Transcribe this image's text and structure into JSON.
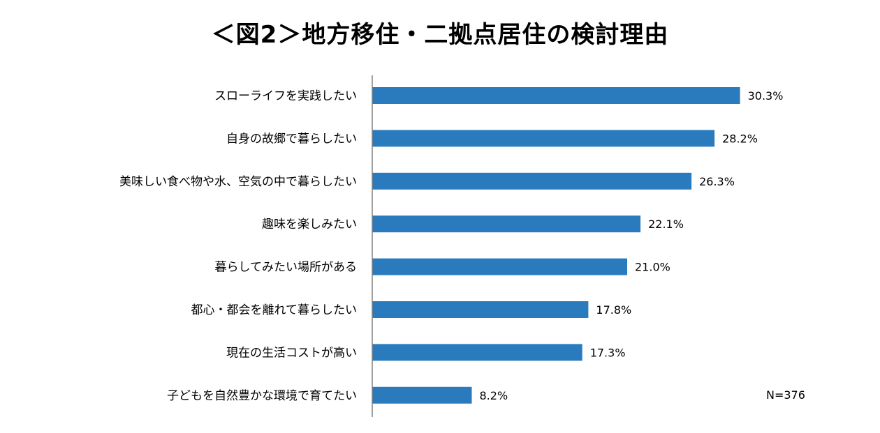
{
  "colors": {
    "bar": "#2a7bbd",
    "axis": "#808080",
    "background": "#ffffff"
  },
  "chart_data": {
    "type": "bar",
    "orientation": "horizontal",
    "title": "＜図2＞地方移住・二拠点居住の検討理由",
    "categories": [
      "スローライフを実践したい",
      "自身の故郷で暮らしたい",
      "美味しい食べ物や水、空気の中で暮らしたい",
      "趣味を楽しみたい",
      "暮らしてみたい場所がある",
      "都心・都会を離れて暮らしたい",
      "現在の生活コストが高い",
      "子どもを自然豊かな環境で育てたい"
    ],
    "values": [
      30.3,
      28.2,
      26.3,
      22.1,
      21.0,
      17.8,
      17.3,
      8.2
    ],
    "value_labels": [
      "30.3%",
      "28.2%",
      "26.3%",
      "22.1%",
      "21.0%",
      "17.8%",
      "17.3%",
      "8.2%"
    ],
    "xlim": [
      0,
      40
    ],
    "grid": false,
    "legend": "none",
    "note": "N=376"
  }
}
